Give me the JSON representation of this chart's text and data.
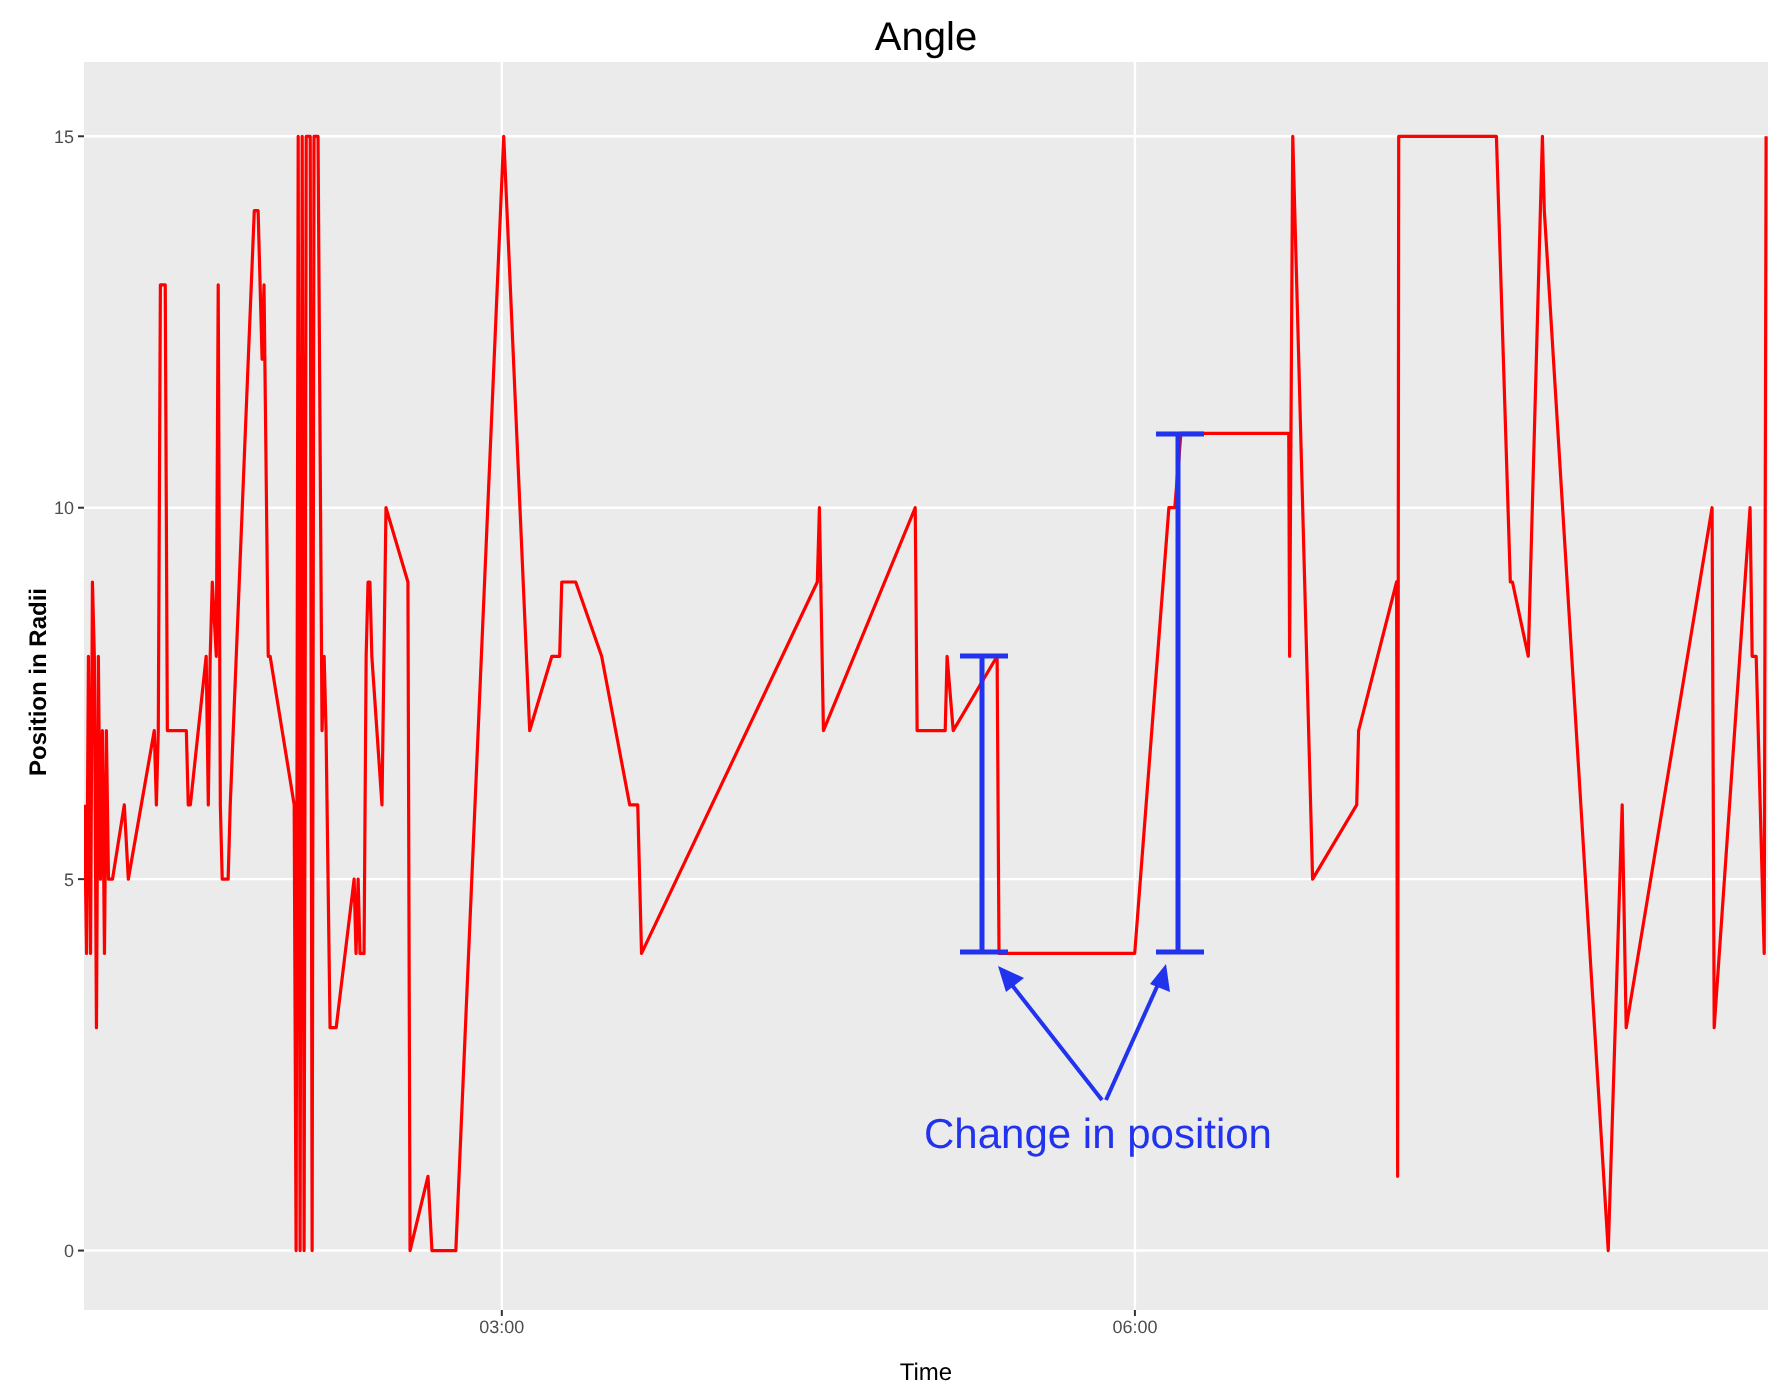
{
  "chart_data": {
    "type": "line",
    "title": "Angle",
    "xlabel": "Time",
    "ylabel": "Position in Radii",
    "annotations": [
      "Change in position"
    ],
    "xlim": [
      1.02,
      9.0
    ],
    "xticks": [
      {
        "value": 3,
        "label": "03:00"
      },
      {
        "value": 6,
        "label": "06:00"
      }
    ],
    "ylim": [
      -0.8,
      16.0
    ],
    "yticks": [
      0,
      5,
      10,
      15
    ],
    "grid": true,
    "series": [
      {
        "color": "#ff0000",
        "x": [
          1.022,
          1.032,
          1.041,
          1.051,
          1.06,
          1.069,
          1.079,
          1.088,
          1.098,
          1.107,
          1.117,
          1.126,
          1.136,
          1.155,
          1.211,
          1.23,
          1.353,
          1.363,
          1.372,
          1.382,
          1.405,
          1.415,
          1.505,
          1.514,
          1.524,
          1.599,
          1.609,
          1.618,
          1.628,
          1.647,
          1.656,
          1.666,
          1.675,
          1.703,
          1.713,
          1.827,
          1.845,
          1.864,
          1.873,
          1.893,
          1.902,
          2.016,
          2.025,
          2.035,
          2.044,
          2.054,
          2.063,
          2.073,
          2.092,
          2.101,
          2.11,
          2.129,
          2.148,
          2.158,
          2.167,
          2.186,
          2.215,
          2.3,
          2.309,
          2.319,
          2.328,
          2.347,
          2.357,
          2.366,
          2.375,
          2.384,
          2.432,
          2.451,
          2.555,
          2.565,
          2.65,
          2.669,
          2.782,
          3.009,
          3.132,
          3.237,
          3.274,
          3.284,
          3.35,
          3.473,
          3.606,
          3.644,
          3.662,
          4.495,
          4.505,
          4.524,
          4.959,
          4.968,
          5.101,
          5.11,
          5.139,
          5.347,
          5.356,
          5.999,
          6.161,
          6.189,
          6.218,
          6.729,
          6.733,
          6.748,
          6.842,
          7.051,
          7.06,
          7.24,
          7.245,
          7.25,
          7.713,
          7.779,
          7.789,
          7.864,
          7.931,
          7.94,
          8.243,
          8.309,
          8.328,
          8.735,
          8.745,
          8.915,
          8.925,
          8.944,
          8.982,
          8.991
        ],
        "values": [
          6,
          4,
          8,
          4,
          9,
          8,
          3,
          8,
          5,
          7,
          4,
          7,
          5,
          5,
          6,
          5,
          7,
          6,
          7,
          13,
          13,
          7,
          7,
          6,
          6,
          8,
          6,
          8,
          9,
          8,
          13,
          6,
          5,
          5,
          6,
          14,
          14,
          12,
          13,
          8,
          8,
          6,
          0,
          15,
          0,
          15,
          0,
          15,
          15,
          0,
          15,
          15,
          7,
          8,
          7,
          3,
          3,
          5,
          4,
          5,
          4,
          4,
          8,
          9,
          9,
          8,
          6,
          10,
          9,
          0,
          1,
          0,
          0,
          15,
          7,
          8,
          8,
          9,
          9,
          8,
          6,
          6,
          4,
          9,
          10,
          7,
          10,
          7,
          7,
          8,
          7,
          8,
          4,
          4,
          10,
          10,
          11,
          11,
          8,
          15,
          5,
          6,
          7,
          9,
          1,
          15,
          15,
          9,
          9,
          8,
          15,
          14,
          0,
          6,
          3,
          10,
          3,
          10,
          8,
          8,
          4,
          15
        ]
      }
    ]
  }
}
